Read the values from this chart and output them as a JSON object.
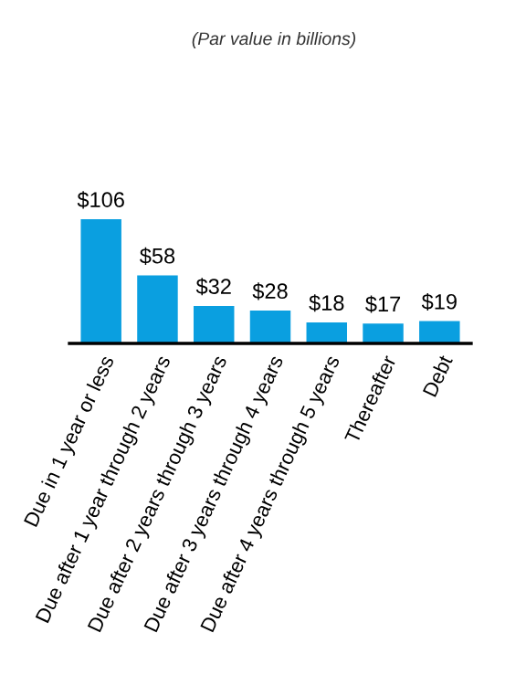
{
  "chart_data": {
    "type": "bar",
    "subtitle": "(Par value in billions)",
    "categories": [
      "Due in 1 year or less",
      "Due after 1 year through 2 years",
      "Due after 2 years through 3 years",
      "Due after 3 years through 4 years",
      "Due after 4 years through 5 years",
      "Thereafter",
      "Debt"
    ],
    "values": [
      106,
      58,
      32,
      28,
      18,
      17,
      19
    ],
    "value_labels": [
      "$106",
      "$58",
      "$32",
      "$28",
      "$18",
      "$17",
      "$19"
    ],
    "color": "#0a9fe0"
  }
}
